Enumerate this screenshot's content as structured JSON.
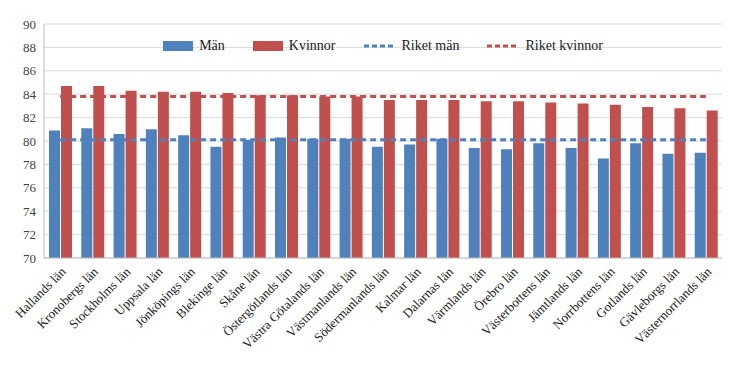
{
  "chart_data": {
    "type": "bar",
    "categories": [
      "Hallands län",
      "Kronobergs län",
      "Stockholms län",
      "Uppsala län",
      "Jönköpings län",
      "Blekinge län",
      "Skåne län",
      "Östergötlands län",
      "Västra Götalands län",
      "Västmanlands län",
      "Södermanlands län",
      "Kalmar län",
      "Dalarnas län",
      "Värmlands län",
      "Örebro län",
      "Västerbottens län",
      "Jämtlands län",
      "Norrbottens län",
      "Gotlands län",
      "Gävleborgs län",
      "Västernorrlands län"
    ],
    "series": [
      {
        "name": "Män",
        "type": "bar",
        "color": "#4f81bd",
        "values": [
          80.9,
          81.1,
          80.6,
          81.0,
          80.5,
          79.5,
          80.1,
          80.3,
          80.2,
          80.2,
          79.5,
          79.7,
          80.2,
          79.4,
          79.3,
          79.8,
          79.4,
          78.5,
          79.8,
          78.9,
          79.0
        ]
      },
      {
        "name": "Kvinnor",
        "type": "bar",
        "color": "#c0504d",
        "values": [
          84.7,
          84.7,
          84.3,
          84.2,
          84.2,
          84.1,
          83.9,
          83.9,
          83.8,
          83.8,
          83.5,
          83.5,
          83.5,
          83.4,
          83.4,
          83.3,
          83.2,
          83.1,
          82.9,
          82.8,
          82.6
        ]
      },
      {
        "name": "Riket män",
        "type": "line",
        "line_style": "dashed",
        "color": "#4f81bd",
        "values": [
          80.1,
          80.1,
          80.1,
          80.1,
          80.1,
          80.1,
          80.1,
          80.1,
          80.1,
          80.1,
          80.1,
          80.1,
          80.1,
          80.1,
          80.1,
          80.1,
          80.1,
          80.1,
          80.1,
          80.1,
          80.1
        ]
      },
      {
        "name": "Riket kvinnor",
        "type": "line",
        "line_style": "dashed",
        "color": "#c0504d",
        "values": [
          83.8,
          83.8,
          83.8,
          83.8,
          83.8,
          83.8,
          83.8,
          83.8,
          83.8,
          83.8,
          83.8,
          83.8,
          83.8,
          83.8,
          83.8,
          83.8,
          83.8,
          83.8,
          83.8,
          83.8,
          83.8
        ]
      }
    ],
    "ylim": [
      70,
      90
    ],
    "yticks": [
      70,
      72,
      74,
      76,
      78,
      80,
      82,
      84,
      86,
      88,
      90
    ],
    "grid": true,
    "legend": "top"
  }
}
